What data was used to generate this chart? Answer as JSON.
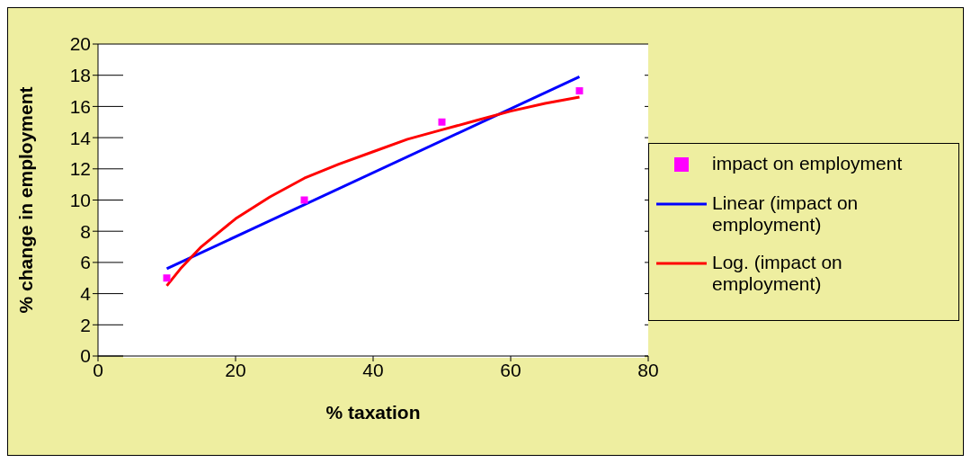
{
  "chart_data": {
    "type": "scatter",
    "xlabel": "% taxation",
    "ylabel": "% change in employment",
    "xlim": [
      0,
      80
    ],
    "xticks": [
      0,
      20,
      40,
      60,
      80
    ],
    "ylim": [
      0,
      20
    ],
    "yticks": [
      0,
      2,
      4,
      6,
      8,
      10,
      12,
      14,
      16,
      18,
      20
    ],
    "grid": "y",
    "legend": "right",
    "series": [
      {
        "name": "impact on employment",
        "color": "#ff00ff",
        "marker": "square",
        "x": [
          10,
          30,
          50,
          70
        ],
        "values": [
          5,
          10,
          15,
          17
        ]
      },
      {
        "name": "Linear (impact on employment)",
        "type": "line",
        "color": "#0000ff",
        "marker": "none",
        "x": [
          10,
          70
        ],
        "values": [
          5.6,
          17.9
        ]
      },
      {
        "name": "Log. (impact on employment)",
        "type": "line",
        "color": "#ff0000",
        "marker": "none",
        "x": [
          10,
          12,
          15,
          20,
          25,
          30,
          35,
          40,
          45,
          50,
          55,
          60,
          65,
          70
        ],
        "values": [
          4.5,
          5.6,
          7.0,
          8.8,
          10.2,
          11.4,
          12.3,
          13.1,
          13.9,
          14.5,
          15.1,
          15.7,
          16.2,
          16.6
        ]
      }
    ]
  }
}
